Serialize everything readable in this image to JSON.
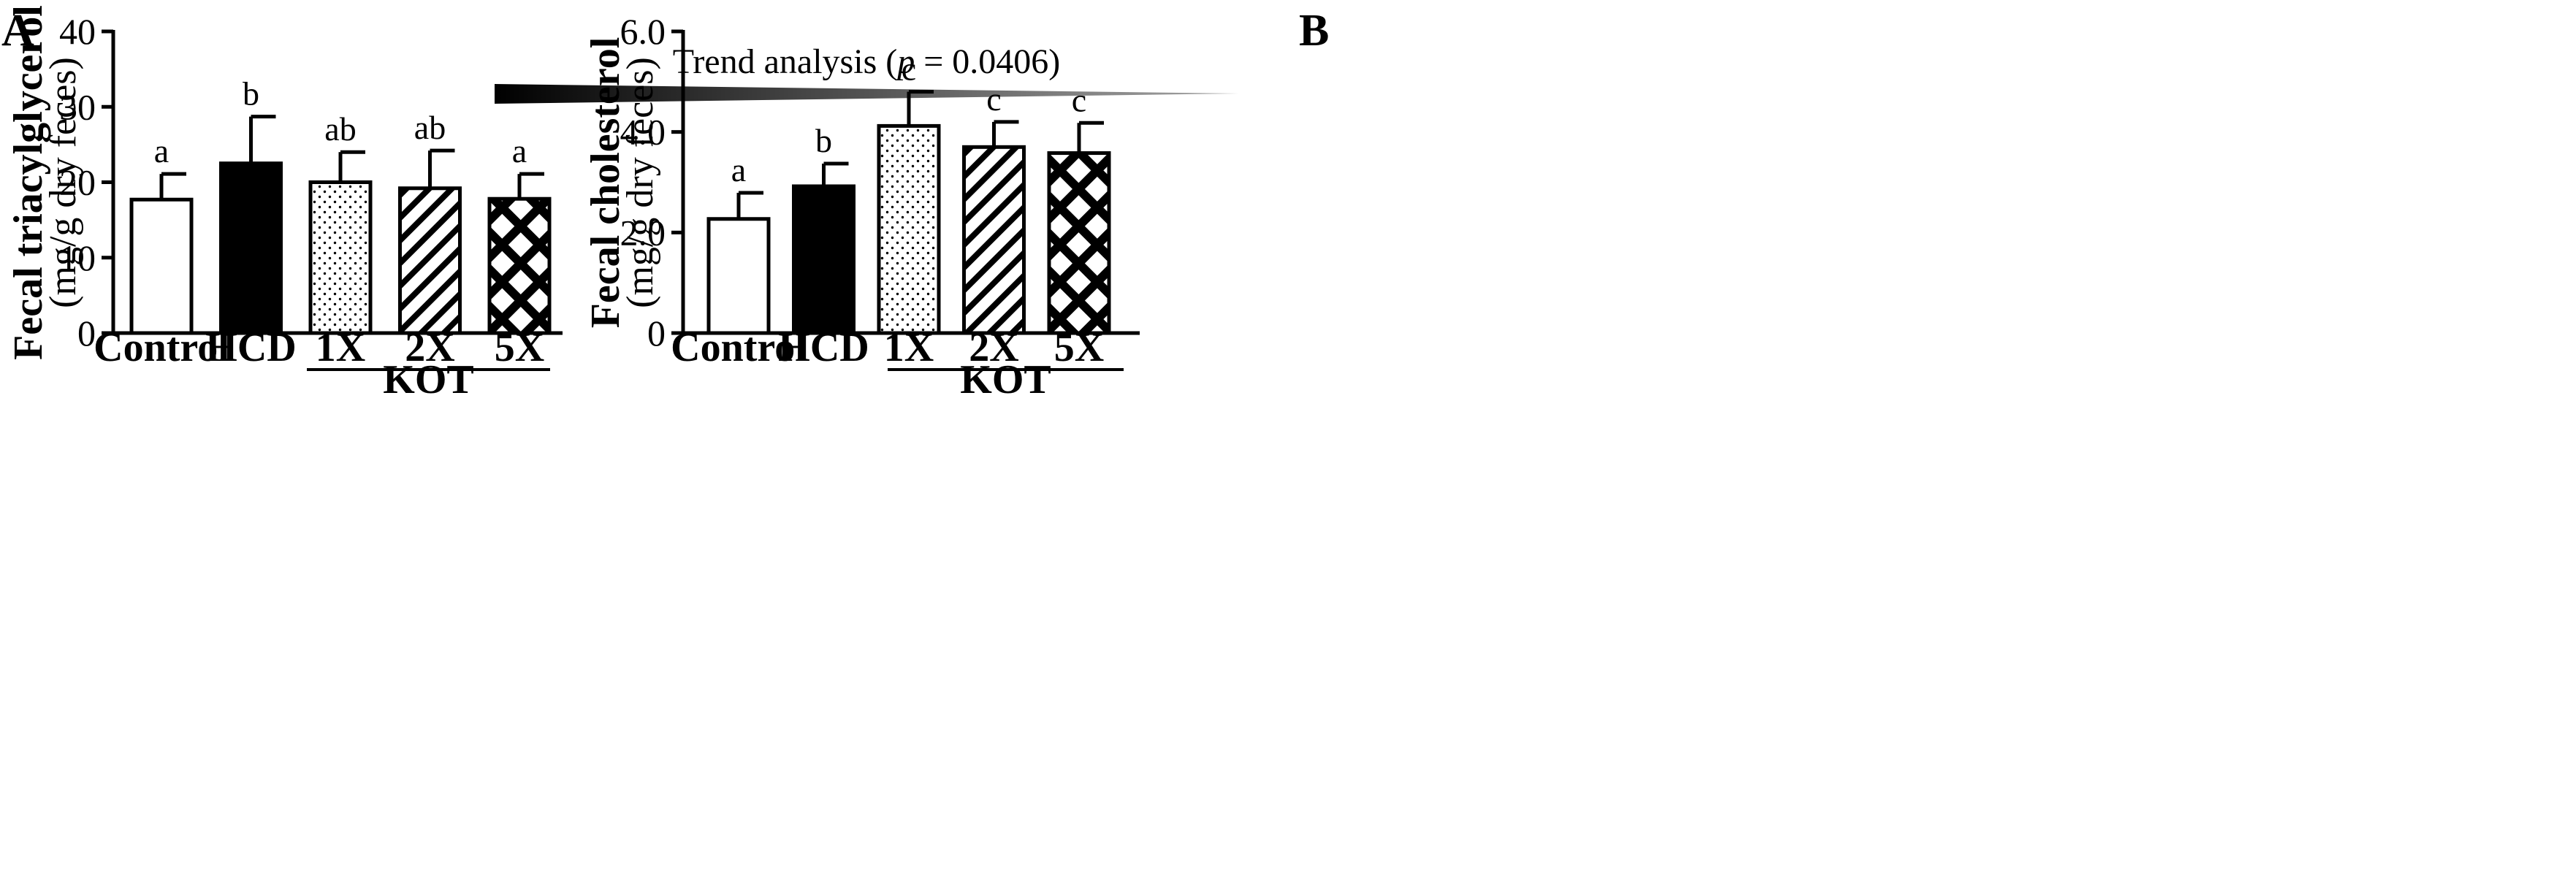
{
  "panel_a": {
    "letter": "A",
    "trend_prefix": "Trend analysis (",
    "trend_p": "p",
    "trend_suffix": " = 0.0406)",
    "group_label": "KOT"
  },
  "panel_b": {
    "letter": "B",
    "group_label": "KOT"
  },
  "chart_data": [
    {
      "type": "bar",
      "panel": "A",
      "title": "",
      "ylabel": "Fecal triacylglycerol",
      "ylabel_units": "(mg/g dry feces)",
      "xlabel": "",
      "ylim": [
        0,
        40
      ],
      "yticks": [
        "0",
        "10",
        "20",
        "30",
        "40"
      ],
      "categories": [
        "Control",
        "HCD",
        "1X",
        "2X",
        "5X"
      ],
      "values": [
        17.7,
        22.5,
        20.0,
        19.2,
        17.8
      ],
      "errors": [
        3.4,
        6.2,
        4.0,
        5.0,
        3.3
      ],
      "significance": [
        "a",
        "b",
        "ab",
        "ab",
        "a"
      ],
      "fills": [
        "white",
        "black",
        "dots",
        "hatch",
        "crosshatch"
      ],
      "group_bracket": {
        "label": "KOT",
        "categories": [
          "1X",
          "2X",
          "5X"
        ]
      },
      "annotation": "Trend analysis (p = 0.0406)"
    },
    {
      "type": "bar",
      "panel": "B",
      "title": "",
      "ylabel": "Fecal cholesterol",
      "ylabel_units": "(mg/g dry feces)",
      "xlabel": "",
      "ylim": [
        0,
        6.0
      ],
      "yticks": [
        "0",
        "2.0",
        "4.0",
        "6.0"
      ],
      "categories": [
        "Control",
        "HCD",
        "1X",
        "2X",
        "5X"
      ],
      "values": [
        2.27,
        2.92,
        4.12,
        3.7,
        3.58
      ],
      "errors": [
        0.52,
        0.45,
        0.68,
        0.5,
        0.6
      ],
      "significance": [
        "a",
        "b",
        "c",
        "c",
        "c"
      ],
      "fills": [
        "white",
        "black",
        "dots",
        "hatch",
        "crosshatch"
      ],
      "group_bracket": {
        "label": "KOT",
        "categories": [
          "1X",
          "2X",
          "5X"
        ]
      }
    }
  ]
}
